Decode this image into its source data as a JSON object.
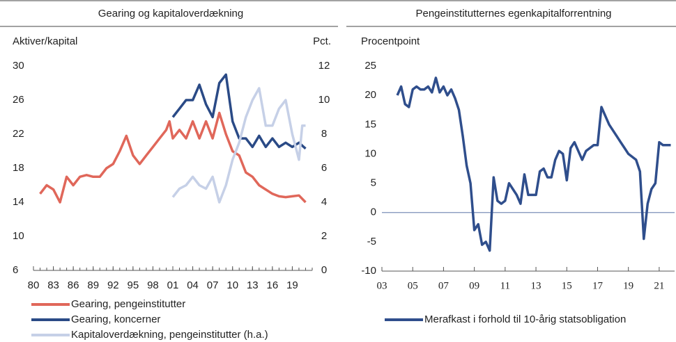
{
  "chart_data": [
    {
      "type": "line",
      "title": "Gearing og kapitaloverdækning",
      "ylabel": "Aktiver/kapital",
      "y2label": "Pct.",
      "xlim": [
        1980,
        2022
      ],
      "xticks": [
        {
          "value": 1980,
          "label": "80"
        },
        {
          "value": 1983,
          "label": "83"
        },
        {
          "value": 1986,
          "label": "86"
        },
        {
          "value": 1989,
          "label": "89"
        },
        {
          "value": 1992,
          "label": "92"
        },
        {
          "value": 1995,
          "label": "95"
        },
        {
          "value": 1998,
          "label": "98"
        },
        {
          "value": 2001,
          "label": "01"
        },
        {
          "value": 2004,
          "label": "04"
        },
        {
          "value": 2007,
          "label": "07"
        },
        {
          "value": 2010,
          "label": "10"
        },
        {
          "value": 2013,
          "label": "13"
        },
        {
          "value": 2016,
          "label": "16"
        },
        {
          "value": 2019,
          "label": "19"
        }
      ],
      "ylim": [
        6,
        30
      ],
      "yticks": [
        30,
        26,
        22,
        18,
        14,
        10,
        6
      ],
      "y2lim": [
        0,
        12
      ],
      "y2ticks": [
        12,
        10,
        8,
        6,
        4,
        2,
        0
      ],
      "series": [
        {
          "name": "Gearing, pengeinstitutter",
          "color": "#e0675a",
          "x": [
            1981,
            1982,
            1983,
            1984,
            1985,
            1986,
            1987,
            1988,
            1989,
            1990,
            1991,
            1992,
            1993,
            1994,
            1995,
            1996,
            1997,
            1998,
            1999,
            2000,
            2000.5,
            2001,
            2002,
            2003,
            2004,
            2005,
            2006,
            2007,
            2008,
            2009,
            2010,
            2011,
            2012,
            2013,
            2014,
            2015,
            2016,
            2017,
            2018,
            2019,
            2020,
            2021
          ],
          "values": [
            15,
            16,
            15.5,
            14,
            17,
            16,
            17,
            17.2,
            17,
            17,
            18,
            18.5,
            20,
            21.8,
            19.5,
            18.5,
            19.5,
            20.5,
            21.5,
            22.5,
            23.5,
            21.5,
            22.5,
            21.5,
            23.5,
            21.5,
            23.5,
            21.5,
            24.5,
            22,
            20,
            19.5,
            17.5,
            17,
            16,
            15.5,
            15,
            14.7,
            14.6,
            14.7,
            14.8,
            14
          ]
        },
        {
          "name": "Gearing, koncerner",
          "color": "#2a4a86",
          "x": [
            2001,
            2002,
            2003,
            2004,
            2005,
            2006,
            2007,
            2008,
            2009,
            2010,
            2011,
            2012,
            2013,
            2014,
            2015,
            2016,
            2017,
            2018,
            2019,
            2020,
            2021
          ],
          "values": [
            24,
            25,
            26,
            26,
            27.8,
            25.5,
            24,
            28,
            29,
            23.5,
            21.5,
            21.5,
            20.5,
            21.8,
            20.5,
            21.5,
            20.5,
            21,
            20.5,
            21,
            20.3
          ]
        },
        {
          "name": "Kapitaloverdækning, pengeinstitutter (h.a.)",
          "color": "#c6d0e7",
          "axis": "y2",
          "x": [
            2001,
            2002,
            2003,
            2004,
            2005,
            2006,
            2007,
            2008,
            2009,
            2010,
            2011,
            2012,
            2013,
            2014,
            2015,
            2016,
            2017,
            2018,
            2019,
            2020,
            2020.5,
            2021
          ],
          "values": [
            4.3,
            4.8,
            5,
            5.5,
            5,
            4.8,
            5.5,
            4,
            5,
            6.5,
            7.5,
            9,
            10,
            10.7,
            8.5,
            8.5,
            9.5,
            10,
            8,
            6.5,
            8.5,
            8.5
          ]
        }
      ]
    },
    {
      "type": "line",
      "title": "Pengeinstitutternes egenkapitalforrentning",
      "ylabel": "Procentpoint",
      "zero_line": true,
      "xlim": [
        2003,
        2022
      ],
      "xticks": [
        {
          "value": 2003,
          "label": "03"
        },
        {
          "value": 2005,
          "label": "05"
        },
        {
          "value": 2007,
          "label": "07"
        },
        {
          "value": 2009,
          "label": "09"
        },
        {
          "value": 2011,
          "label": "11"
        },
        {
          "value": 2013,
          "label": "13"
        },
        {
          "value": 2015,
          "label": "15"
        },
        {
          "value": 2017,
          "label": "17"
        },
        {
          "value": 2019,
          "label": "19"
        },
        {
          "value": 2021,
          "label": "21"
        }
      ],
      "ylim": [
        -10,
        25
      ],
      "yticks": [
        25,
        20,
        15,
        10,
        5,
        0,
        -5,
        -10
      ],
      "series": [
        {
          "name": "Merafkast i forhold til 10-årig statsobligation",
          "color": "#2f4e8c",
          "x": [
            2004,
            2004.25,
            2004.5,
            2004.75,
            2005,
            2005.25,
            2005.5,
            2005.75,
            2006,
            2006.25,
            2006.5,
            2006.75,
            2007,
            2007.25,
            2007.5,
            2007.75,
            2008,
            2008.25,
            2008.5,
            2008.75,
            2009,
            2009.25,
            2009.5,
            2009.75,
            2010,
            2010.25,
            2010.5,
            2010.75,
            2011,
            2011.25,
            2011.5,
            2011.75,
            2012,
            2012.25,
            2012.5,
            2012.75,
            2013,
            2013.25,
            2013.5,
            2013.75,
            2014,
            2014.25,
            2014.5,
            2014.75,
            2015,
            2015.25,
            2015.5,
            2015.75,
            2016,
            2016.25,
            2016.5,
            2016.75,
            2017,
            2017.25,
            2017.5,
            2017.75,
            2018,
            2018.25,
            2018.5,
            2018.75,
            2019,
            2019.25,
            2019.5,
            2019.75,
            2020,
            2020.25,
            2020.5,
            2020.75,
            2021,
            2021.25,
            2021.5,
            2021.75
          ],
          "values": [
            20,
            21.5,
            18.5,
            18,
            21,
            21.5,
            21,
            21,
            21.5,
            20.5,
            23,
            20.5,
            21.5,
            20,
            21,
            19.5,
            17.5,
            13,
            8,
            5,
            -3,
            -2,
            -5.5,
            -5,
            -6.5,
            6,
            2,
            1.5,
            2,
            5,
            4,
            3,
            1.5,
            6.5,
            3,
            3,
            3,
            7,
            7.5,
            6,
            6,
            9,
            10.5,
            10,
            5.5,
            11,
            12,
            10.5,
            9,
            10.5,
            11,
            11.5,
            11.5,
            18,
            16.5,
            15,
            14,
            13,
            12,
            11,
            10,
            9.5,
            9,
            7,
            -4.5,
            1.5,
            4,
            5,
            12,
            11.5,
            11.5,
            11.5
          ]
        }
      ]
    }
  ]
}
